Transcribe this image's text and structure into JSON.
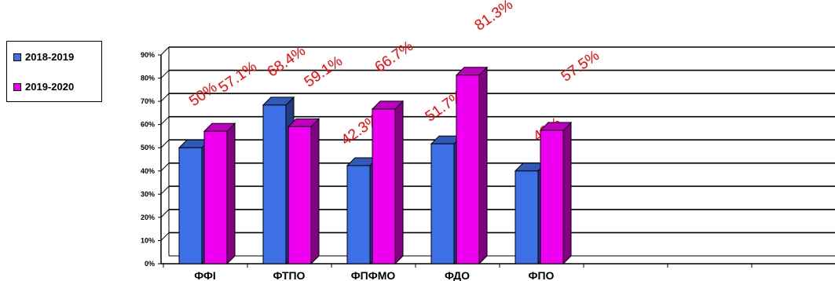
{
  "chart_data": {
    "type": "bar",
    "categories": [
      "ФФІ",
      "ФТПО",
      "ФПФМО",
      "ФДО",
      "ФПО"
    ],
    "series": [
      {
        "name": "2018-2019",
        "values": [
          50,
          68.4,
          42.3,
          51.7,
          40
        ],
        "labels": [
          "50%",
          "68.4%",
          "42.3%",
          "51.7%",
          "40%"
        ]
      },
      {
        "name": "2019-2020",
        "values": [
          57.1,
          59.1,
          66.7,
          81.3,
          57.5
        ],
        "labels": [
          "57.1%",
          "59.1%",
          "66.7%",
          "81.3%",
          "57.5%"
        ]
      }
    ],
    "y_ticks": [
      "0%",
      "10%",
      "20%",
      "30%",
      "40%",
      "50%",
      "60%",
      "70%",
      "80%",
      "90%"
    ],
    "ylim": [
      0,
      90
    ],
    "grid": true,
    "legend_position": "left",
    "colors": {
      "series_1": "#3d6fe6",
      "series_2": "#f000f0",
      "data_labels": "#ff0000"
    }
  }
}
